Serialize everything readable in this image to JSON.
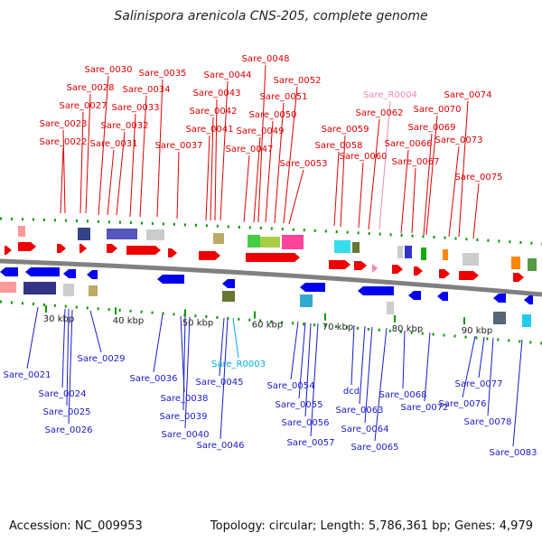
{
  "title": "Salinispora arenicola CNS-205, complete genome",
  "accession_text": "Accession: NC_009953",
  "stats_text": "Topology: circular; Length: 5,786,361 bp; Genes: 4,979",
  "colors": {
    "forward_label": "#dd0000",
    "reverse_label": "#1a1acc",
    "forward_rna_label": "#ee88bb",
    "reverse_rna_label": "#00aadd",
    "backbone": "#808080",
    "tick": "#009900",
    "forward_arrow": "#ee0000",
    "reverse_arrow": "#0000ee"
  },
  "kbp_labels": [
    "30 kbp",
    "40 kbp",
    "50 kbp",
    "60 kbp",
    "70 kbp",
    "80 kbp",
    "90 kbp"
  ],
  "top_labels": [
    {
      "text": "Sare_0022",
      "kind": "gene"
    },
    {
      "text": "Sare_0023",
      "kind": "gene"
    },
    {
      "text": "Sare_0027",
      "kind": "gene"
    },
    {
      "text": "Sare_0028",
      "kind": "gene"
    },
    {
      "text": "Sare_0030",
      "kind": "gene"
    },
    {
      "text": "Sare_0031",
      "kind": "gene"
    },
    {
      "text": "Sare_0032",
      "kind": "gene"
    },
    {
      "text": "Sare_0033",
      "kind": "gene"
    },
    {
      "text": "Sare_0034",
      "kind": "gene"
    },
    {
      "text": "Sare_0035",
      "kind": "gene"
    },
    {
      "text": "Sare_0037",
      "kind": "gene"
    },
    {
      "text": "Sare_0041",
      "kind": "gene"
    },
    {
      "text": "Sare_0042",
      "kind": "gene"
    },
    {
      "text": "Sare_0043",
      "kind": "gene"
    },
    {
      "text": "Sare_0044",
      "kind": "gene"
    },
    {
      "text": "Sare_0047",
      "kind": "gene"
    },
    {
      "text": "Sare_0048",
      "kind": "gene"
    },
    {
      "text": "Sare_0049",
      "kind": "gene"
    },
    {
      "text": "Sare_0050",
      "kind": "gene"
    },
    {
      "text": "Sare_0051",
      "kind": "gene"
    },
    {
      "text": "Sare_0052",
      "kind": "gene"
    },
    {
      "text": "Sare_0053",
      "kind": "gene"
    },
    {
      "text": "Sare_0058",
      "kind": "gene"
    },
    {
      "text": "Sare_0059",
      "kind": "gene"
    },
    {
      "text": "Sare_0060",
      "kind": "gene"
    },
    {
      "text": "Sare_R0004",
      "kind": "rna"
    },
    {
      "text": "Sare_0062",
      "kind": "gene"
    },
    {
      "text": "Sare_0066",
      "kind": "gene"
    },
    {
      "text": "Sare_0067",
      "kind": "gene"
    },
    {
      "text": "Sare_0069",
      "kind": "gene"
    },
    {
      "text": "Sare_0070",
      "kind": "gene"
    },
    {
      "text": "Sare_0073",
      "kind": "gene"
    },
    {
      "text": "Sare_0074",
      "kind": "gene"
    },
    {
      "text": "Sare_0075",
      "kind": "gene"
    }
  ],
  "bottom_labels": [
    {
      "text": "Sare_0021",
      "kind": "gene"
    },
    {
      "text": "Sare_0024",
      "kind": "gene"
    },
    {
      "text": "Sare_0025",
      "kind": "gene"
    },
    {
      "text": "Sare_0026",
      "kind": "gene"
    },
    {
      "text": "Sare_0029",
      "kind": "gene"
    },
    {
      "text": "Sare_0036",
      "kind": "gene"
    },
    {
      "text": "Sare_0038",
      "kind": "gene"
    },
    {
      "text": "Sare_0039",
      "kind": "gene"
    },
    {
      "text": "Sare_0040",
      "kind": "gene"
    },
    {
      "text": "Sare_R0003",
      "kind": "rna"
    },
    {
      "text": "Sare_0045",
      "kind": "gene"
    },
    {
      "text": "Sare_0046",
      "kind": "gene"
    },
    {
      "text": "Sare_0054",
      "kind": "gene"
    },
    {
      "text": "Sare_0055",
      "kind": "gene"
    },
    {
      "text": "Sare_0056",
      "kind": "gene"
    },
    {
      "text": "Sare_0057",
      "kind": "gene"
    },
    {
      "text": "dcd",
      "kind": "gene"
    },
    {
      "text": "Sare_0063",
      "kind": "gene"
    },
    {
      "text": "Sare_0064",
      "kind": "gene"
    },
    {
      "text": "Sare_0065",
      "kind": "gene"
    },
    {
      "text": "Sare_0068",
      "kind": "gene"
    },
    {
      "text": "Sare_0072",
      "kind": "gene"
    },
    {
      "text": "Sare_0076",
      "kind": "gene"
    },
    {
      "text": "Sare_0077",
      "kind": "gene"
    },
    {
      "text": "Sare_0078",
      "kind": "gene"
    },
    {
      "text": "Sare_0083",
      "kind": "gene"
    }
  ]
}
